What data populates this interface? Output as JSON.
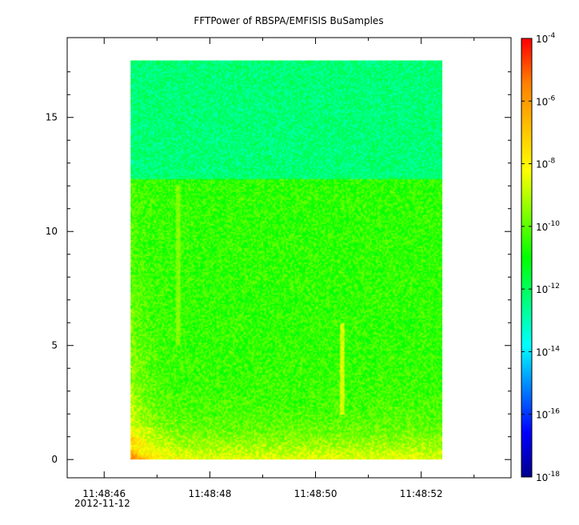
{
  "chart_data": {
    "type": "heatmap",
    "title": "FFTPower of RBSPA/EMFISIS  BuSamples",
    "xlabel": "",
    "ylabel": "",
    "x_axis": {
      "type": "time",
      "range": [
        "11:48:45.3",
        "11:48:53.7"
      ],
      "major_ticks": [
        "11:48:46",
        "11:48:48",
        "11:48:50",
        "11:48:52"
      ],
      "minor_ticks": [
        "11:48:47",
        "11:48:49",
        "11:48:51",
        "11:48:53"
      ],
      "date_label": "2012-11-12"
    },
    "y_axis": {
      "range": [
        -0.8,
        18.5
      ],
      "ticks": [
        0,
        5,
        10,
        15
      ],
      "tick_labels": [
        "0",
        "5",
        "10",
        "15"
      ]
    },
    "data_extent": {
      "time_start": "11:48:46.5",
      "time_end": "11:48:52.4",
      "y_start": 0,
      "y_end": 17.5
    },
    "colorbar": {
      "scale": "log",
      "range": [
        1e-18,
        0.0001
      ],
      "ticks": [
        {
          "base": "10",
          "exp": "-4"
        },
        {
          "base": "10",
          "exp": "-6"
        },
        {
          "base": "10",
          "exp": "-8"
        },
        {
          "base": "10",
          "exp": "-10"
        },
        {
          "base": "10",
          "exp": "-12"
        },
        {
          "base": "10",
          "exp": "-14"
        },
        {
          "base": "10",
          "exp": "-16"
        },
        {
          "base": "10",
          "exp": "-18"
        }
      ],
      "colormap": [
        "#00008f",
        "#0000ff",
        "#0080ff",
        "#00ffff",
        "#00ff80",
        "#00ff00",
        "#80ff00",
        "#ffff00",
        "#ffbf00",
        "#ff8000",
        "#ff0000"
      ]
    },
    "features": [
      {
        "name": "high-frequency band",
        "y_range": [
          12.3,
          17.5
        ],
        "log_power": -12.3
      },
      {
        "name": "mid band",
        "y_range": [
          0,
          12.3
        ],
        "log_power": -10.5
      },
      {
        "name": "low-frequency enhancement",
        "y_range": [
          0,
          2.5
        ],
        "log_power": -8.0
      },
      {
        "name": "spike",
        "time": "11:48:50.5",
        "y_range": [
          2,
          6
        ],
        "log_power": -8.6
      },
      {
        "name": "spike",
        "time": "11:48:47.4",
        "y_range": [
          5,
          12
        ],
        "log_power": -9.6
      }
    ],
    "grid": false
  }
}
